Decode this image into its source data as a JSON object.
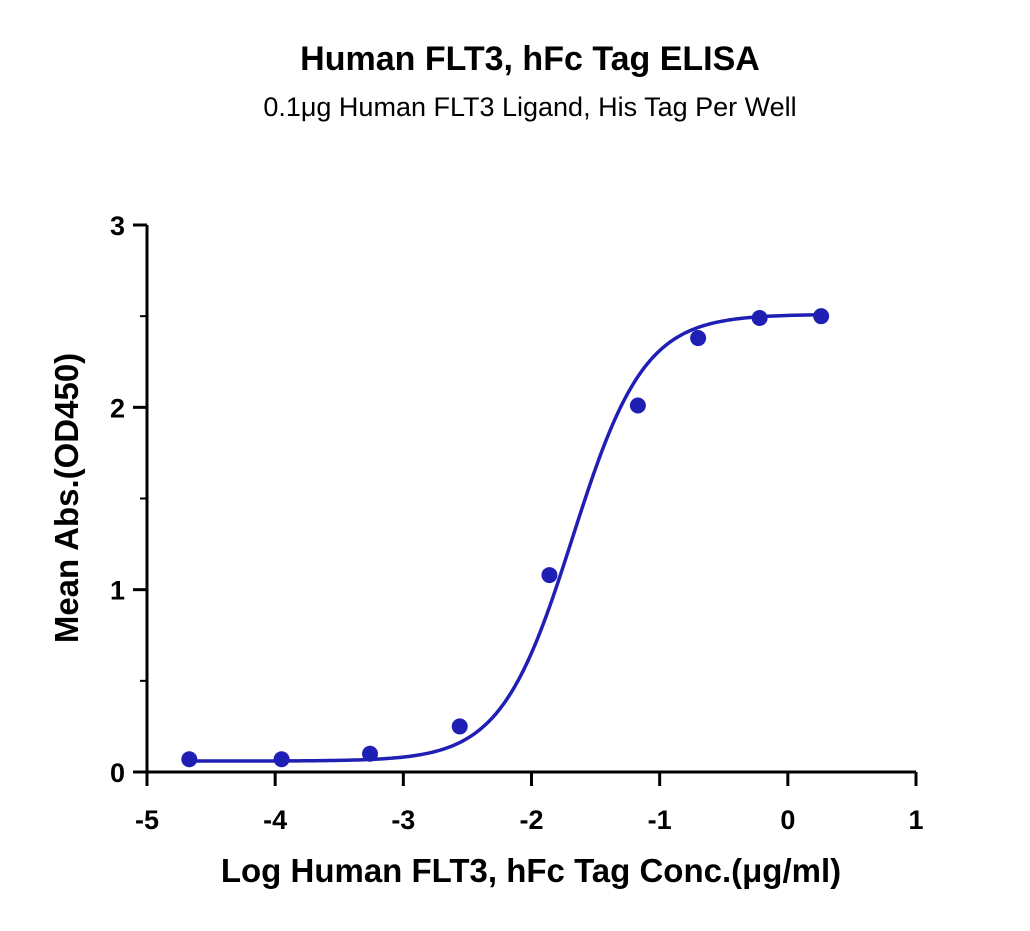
{
  "chart_data": {
    "type": "scatter",
    "title": "Human FLT3, hFc Tag ELISA",
    "subtitle": "0.1μg Human FLT3 Ligand, His Tag Per Well",
    "xlabel": "Log Human FLT3, hFc Tag Conc.(μg/ml)",
    "ylabel": "Mean Abs.(OD450)",
    "xlim": [
      -5,
      1
    ],
    "ylim": [
      0,
      3
    ],
    "xticks": [
      "-5",
      "-4",
      "-3",
      "-2",
      "-1",
      "0",
      "1"
    ],
    "yticks": [
      "0",
      "1",
      "2",
      "3"
    ],
    "grid": false,
    "series": [
      {
        "x": [
          -4.67,
          -3.95,
          -3.26,
          -2.56,
          -1.86,
          -1.17,
          -0.7,
          -0.22,
          0.26
        ],
        "y": [
          0.07,
          0.07,
          0.1,
          0.25,
          1.08,
          2.01,
          2.38,
          2.49,
          2.5
        ],
        "color": "#1f1fb4",
        "fit": "4PL sigmoid curve"
      }
    ]
  }
}
